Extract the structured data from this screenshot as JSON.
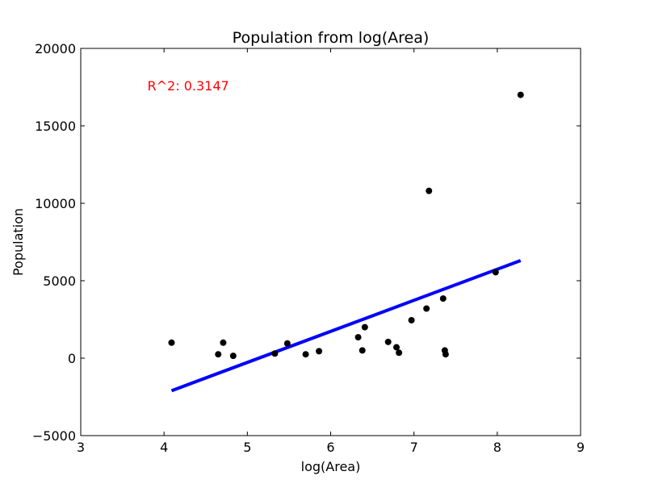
{
  "chart_data": {
    "type": "scatter",
    "title": "Population from log(Area)",
    "xlabel": "log(Area)",
    "ylabel": "Population",
    "xlim": [
      3,
      9
    ],
    "ylim": [
      -5000,
      20000
    ],
    "x_ticks": [
      3,
      4,
      5,
      6,
      7,
      8,
      9
    ],
    "y_ticks": [
      -5000,
      0,
      5000,
      10000,
      15000,
      20000
    ],
    "x_tick_labels": [
      "3",
      "4",
      "5",
      "6",
      "7",
      "8",
      "9"
    ],
    "y_tick_labels": [
      "−5000",
      "0",
      "5000",
      "10000",
      "15000",
      "20000"
    ],
    "grid": false,
    "points": {
      "color": "#000000",
      "x": [
        4.09,
        4.65,
        4.71,
        4.83,
        5.33,
        5.48,
        5.7,
        5.86,
        6.33,
        6.38,
        6.41,
        6.69,
        6.79,
        6.82,
        6.97,
        7.15,
        7.18,
        7.35,
        7.37,
        7.38,
        7.98,
        8.28
      ],
      "y": [
        1000,
        250,
        1000,
        150,
        300,
        950,
        250,
        450,
        1350,
        500,
        2000,
        1050,
        700,
        350,
        2450,
        3200,
        10800,
        3850,
        500,
        250,
        5550,
        17000
      ]
    },
    "fit_line": {
      "color": "#0000ff",
      "x": [
        4.09,
        8.28
      ],
      "y": [
        -2100,
        6300
      ]
    },
    "annotation": {
      "text": "R^2: 0.3147",
      "color": "#ff0000",
      "x": 3.8,
      "y": 17300
    }
  }
}
